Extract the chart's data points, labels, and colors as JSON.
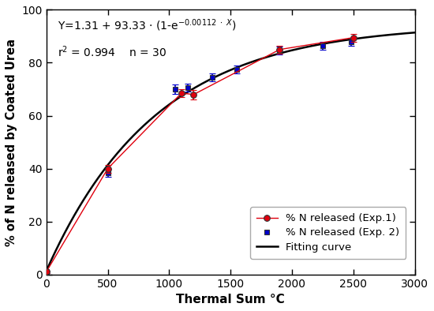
{
  "equation_a": 1.31,
  "equation_b": 93.33,
  "equation_k": 0.00112,
  "r2": 0.994,
  "n": 30,
  "exp1_x": [
    0,
    500,
    1100,
    1200,
    1900,
    2500
  ],
  "exp1_y": [
    1.0,
    40.0,
    68.5,
    68.0,
    85.0,
    89.5
  ],
  "exp1_yerr": [
    0.5,
    1.5,
    1.5,
    1.8,
    1.5,
    1.5
  ],
  "exp1_color": "#e0000e",
  "exp1_label": "% N released (Exp.1)",
  "exp2_x": [
    0,
    500,
    1050,
    1150,
    1350,
    1550,
    1900,
    2250,
    2480
  ],
  "exp2_y": [
    1.0,
    38.5,
    70.0,
    70.5,
    74.5,
    77.5,
    84.5,
    86.5,
    88.0
  ],
  "exp2_yerr": [
    0.5,
    1.5,
    1.8,
    1.5,
    1.5,
    1.5,
    1.5,
    1.5,
    1.5
  ],
  "exp2_color": "#0000cc",
  "exp2_label": "% N released (Exp. 2)",
  "curve_color": "#000000",
  "curve_label": "Fitting curve",
  "xlabel": "Thermal Sum °C",
  "ylabel": "% of N released by Coated Urea",
  "xlim": [
    0,
    3000
  ],
  "ylim": [
    0,
    100
  ],
  "xticks": [
    0,
    500,
    1000,
    1500,
    2000,
    2500,
    3000
  ],
  "yticks": [
    0,
    20,
    40,
    60,
    80,
    100
  ],
  "figsize": [
    5.5,
    3.94
  ],
  "dpi": 100
}
